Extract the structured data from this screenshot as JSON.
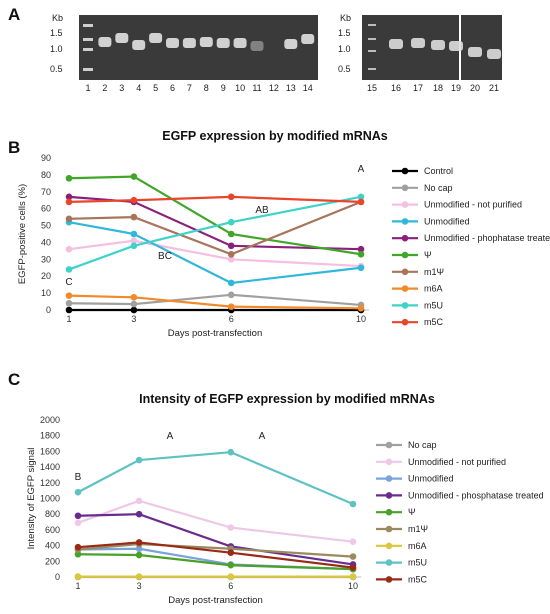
{
  "panel_labels": {
    "a": "A",
    "b": "B",
    "c": "C"
  },
  "gel": {
    "unit": "Kb",
    "size_markers": [
      "1.5",
      "1.0",
      "0.5"
    ],
    "left_lanes": [
      "1",
      "2",
      "3",
      "4",
      "5",
      "6",
      "7",
      "8",
      "9",
      "10",
      "11",
      "12",
      "13",
      "14"
    ],
    "right_lanes": [
      "15",
      "16",
      "17",
      "18",
      "19",
      "20",
      "21"
    ]
  },
  "chart_data": [
    {
      "type": "line",
      "title": "EGFP expression by modified mRNAs",
      "xlabel": "Days post-transfection",
      "ylabel": "EGFP-positive cells (%)",
      "x": [
        1,
        3,
        6,
        10
      ],
      "ylim": [
        0,
        90
      ],
      "yticks": [
        0,
        10,
        20,
        30,
        40,
        50,
        60,
        70,
        80,
        90
      ],
      "legend": "right",
      "grid": false,
      "series": [
        {
          "name": "Control",
          "color": "#000000",
          "values": [
            0,
            0,
            0,
            0
          ]
        },
        {
          "name": "No cap",
          "color": "#a0a0a0",
          "values": [
            4,
            3.5,
            9,
            3
          ]
        },
        {
          "name": "Unmodified - not purified",
          "color": "#f4bfe0",
          "values": [
            36,
            41,
            30,
            26
          ]
        },
        {
          "name": "Unmodified",
          "color": "#2fb8d8",
          "values": [
            52,
            45,
            16,
            25
          ]
        },
        {
          "name": "Unmodified - phophatase treated",
          "color": "#8b1f7a",
          "values": [
            67,
            64,
            38,
            36
          ]
        },
        {
          "name": "Ψ",
          "color": "#3fa62a",
          "values": [
            78,
            79,
            45,
            33
          ]
        },
        {
          "name": "m1Ψ",
          "color": "#a8745a",
          "values": [
            54,
            55,
            33,
            64
          ]
        },
        {
          "name": "m6A",
          "color": "#f08a2a",
          "values": [
            8.5,
            7.5,
            2,
            1
          ]
        },
        {
          "name": "m5U",
          "color": "#3fd2c8",
          "values": [
            24,
            38,
            52,
            67
          ]
        },
        {
          "name": "m5C",
          "color": "#e8452c",
          "values": [
            64,
            65,
            67,
            64
          ]
        }
      ],
      "annotations": [
        "C",
        "BC",
        "AB",
        "A"
      ]
    },
    {
      "type": "line",
      "title": "Intensity of EGFP expression by modified mRNAs",
      "xlabel": "Days post-transfection",
      "ylabel": "Intensity of EGFP signal",
      "x": [
        1,
        3,
        6,
        10
      ],
      "ylim": [
        0,
        2000
      ],
      "yticks": [
        0,
        200,
        400,
        600,
        800,
        1000,
        1200,
        1400,
        1600,
        1800,
        2000
      ],
      "legend": "right",
      "grid": false,
      "series": [
        {
          "name": "No cap",
          "color": "#a0a0a0",
          "values": [
            0,
            0,
            0,
            0
          ]
        },
        {
          "name": "Unmodified - not purified",
          "color": "#efc8e8",
          "values": [
            690,
            970,
            630,
            450
          ]
        },
        {
          "name": "Unmodified",
          "color": "#7aa3dc",
          "values": [
            350,
            360,
            160,
            100
          ]
        },
        {
          "name": "Unmodified - phosphatase treated",
          "color": "#6a2c8c",
          "values": [
            780,
            800,
            390,
            160
          ]
        },
        {
          "name": "Ψ",
          "color": "#4aa028",
          "values": [
            290,
            280,
            150,
            100
          ]
        },
        {
          "name": "m1Ψ",
          "color": "#9a8a60",
          "values": [
            350,
            420,
            360,
            260
          ]
        },
        {
          "name": "m6A",
          "color": "#d8c83a",
          "values": [
            5,
            5,
            5,
            5
          ]
        },
        {
          "name": "m5U",
          "color": "#5ec2c4",
          "values": [
            1080,
            1490,
            1590,
            930
          ]
        },
        {
          "name": "m5C",
          "color": "#9a2a18",
          "values": [
            380,
            440,
            310,
            120
          ]
        }
      ],
      "annotations": [
        "B",
        "A",
        "A"
      ]
    }
  ]
}
